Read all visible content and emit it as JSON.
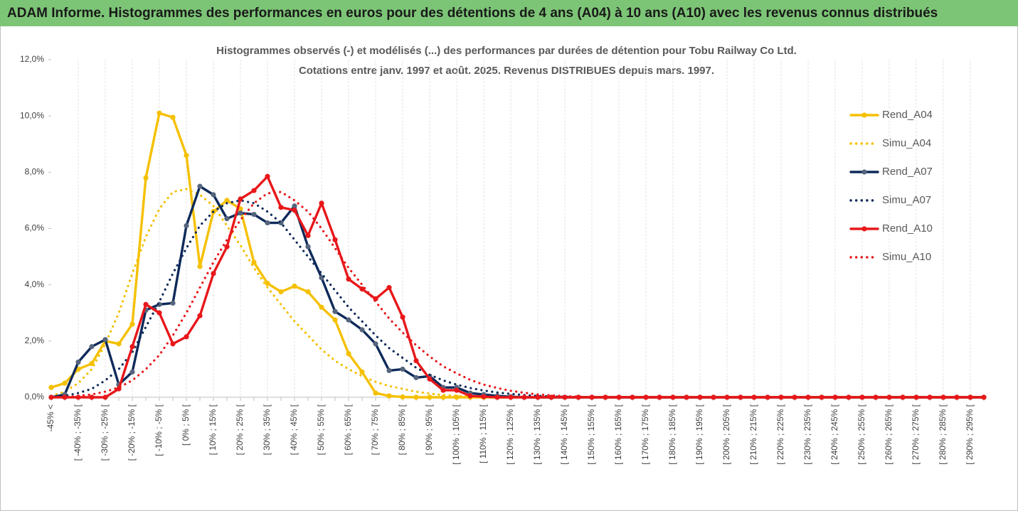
{
  "header": {
    "title": "ADAM Informe. Histogrammes des performances en euros pour des détentions de 4 ans (A04) à 10 ans (A10) avec les revenus connus distribués"
  },
  "chart_data": {
    "type": "line",
    "title": "Histogrammes observés (-) et modélisés (...) des performances par durées de détention pour Tobu Railway Co Ltd.",
    "subtitle": "Cotations entre janv. 1997 et août. 2025. Revenus DISTRIBUES depuis mars. 1997.",
    "categories": [
      "-45% <",
      null,
      "[ -40% ; -35% [",
      null,
      "[ -30% ; -25% [",
      null,
      "[ -20% ; -15% [",
      null,
      "[ -10% ; -5% [",
      null,
      "[ 0% ; 5% [",
      null,
      "[ 10% ; 15% [",
      null,
      "[ 20% ; 25% [",
      null,
      "[ 30% ; 35% [",
      null,
      "[ 40% ; 45% [",
      null,
      "[ 50% ; 55% [",
      null,
      "[ 60% ; 65% [",
      null,
      "[ 70% ; 75% [",
      null,
      "[ 80% ; 85% [",
      null,
      "[ 90% ; 95% [",
      null,
      "[ 100% ; 105% [",
      null,
      "[ 110% ; 115% [",
      null,
      "[ 120% ; 125% [",
      null,
      "[ 130% ; 135% [",
      null,
      "[ 140% ; 145% [",
      null,
      "[ 150% ; 155% [",
      null,
      "[ 160% ; 165% [",
      null,
      "[ 170% ; 175% [",
      null,
      "[ 180% ; 185% [",
      null,
      "[ 190% ; 195% [",
      null,
      "[ 200% ; 205% [",
      null,
      "[ 210% ; 215% [",
      null,
      "[ 220% ; 225% [",
      null,
      "[ 230% ; 235% [",
      null,
      "[ 240% ; 245% [",
      null,
      "[ 250% ; 255% [",
      null,
      "[ 260% ; 265% [",
      null,
      "[ 270% ; 275% [",
      null,
      "[ 280% ; 285% [",
      null,
      "[ 290% ; 295% [",
      null
    ],
    "series": [
      {
        "name": "Rend_A04",
        "color": "#f5c000",
        "style": "solid",
        "marker": true,
        "marker_color": "#f5c000",
        "values": [
          0.35,
          0.5,
          1.0,
          1.2,
          2.0,
          1.9,
          2.6,
          7.8,
          10.1,
          9.95,
          8.6,
          4.65,
          6.6,
          7.0,
          6.7,
          4.8,
          4.05,
          3.75,
          3.95,
          3.75,
          3.2,
          2.75,
          1.55,
          0.9,
          0.15,
          0.05,
          0.01,
          0,
          0,
          0,
          0,
          0,
          0,
          0,
          0,
          0,
          0,
          0,
          0,
          0,
          0,
          0,
          0,
          0,
          0,
          0,
          0,
          0,
          0,
          0,
          0,
          0,
          0,
          0,
          0,
          0,
          0,
          0,
          0,
          0,
          0,
          0,
          0,
          0,
          0,
          0,
          0,
          0,
          0,
          0
        ]
      },
      {
        "name": "Simu_A04",
        "color": "#f5c000",
        "style": "dotted",
        "marker": false,
        "values": [
          0.05,
          0.2,
          0.5,
          1.0,
          1.9,
          3.0,
          4.4,
          5.7,
          6.7,
          7.3,
          7.4,
          7.2,
          6.8,
          6.1,
          5.4,
          4.6,
          3.9,
          3.3,
          2.7,
          2.2,
          1.7,
          1.3,
          1.0,
          0.75,
          0.55,
          0.4,
          0.3,
          0.2,
          0.13,
          0.08,
          0.05,
          0.03,
          0.02,
          0,
          0,
          0,
          0,
          0,
          0,
          0,
          0,
          0,
          0,
          0,
          0,
          0,
          0,
          0,
          0,
          0,
          0,
          0,
          0,
          0,
          0,
          0,
          0,
          0,
          0,
          0,
          0,
          0,
          0,
          0,
          0,
          0,
          0,
          0,
          0,
          0
        ]
      },
      {
        "name": "Rend_A07",
        "color": "#0e2a5a",
        "style": "solid",
        "marker": true,
        "marker_color": "#56657d",
        "values": [
          0,
          0.1,
          1.25,
          1.8,
          2.05,
          0.45,
          0.9,
          3.1,
          3.3,
          3.35,
          6.1,
          7.5,
          7.2,
          6.35,
          6.55,
          6.5,
          6.2,
          6.2,
          6.8,
          5.35,
          4.25,
          3.05,
          2.75,
          2.4,
          1.9,
          0.95,
          1.0,
          0.7,
          0.75,
          0.35,
          0.35,
          0.15,
          0.1,
          0.05,
          0.02,
          0,
          0,
          0,
          0,
          0,
          0,
          0,
          0,
          0,
          0,
          0,
          0,
          0,
          0,
          0,
          0,
          0,
          0,
          0,
          0,
          0,
          0,
          0,
          0,
          0,
          0,
          0,
          0,
          0,
          0,
          0,
          0,
          0,
          0,
          0
        ]
      },
      {
        "name": "Simu_A07",
        "color": "#0e2a5a",
        "style": "dotted",
        "marker": false,
        "values": [
          0,
          0.05,
          0.15,
          0.3,
          0.6,
          1.0,
          1.6,
          2.5,
          3.4,
          4.4,
          5.3,
          6.1,
          6.6,
          6.9,
          7.0,
          6.9,
          6.6,
          6.2,
          5.6,
          5.0,
          4.4,
          3.8,
          3.2,
          2.7,
          2.2,
          1.75,
          1.4,
          1.05,
          0.8,
          0.6,
          0.45,
          0.33,
          0.24,
          0.17,
          0.12,
          0.08,
          0.05,
          0.03,
          0.02,
          0,
          0,
          0,
          0,
          0,
          0,
          0,
          0,
          0,
          0,
          0,
          0,
          0,
          0,
          0,
          0,
          0,
          0,
          0,
          0,
          0,
          0,
          0,
          0,
          0,
          0,
          0,
          0,
          0,
          0,
          0
        ]
      },
      {
        "name": "Rend_A10",
        "color": "#e8171a",
        "style": "solid",
        "marker": true,
        "marker_color": "#e8171a",
        "values": [
          0,
          0,
          0,
          0,
          0,
          0.3,
          1.8,
          3.3,
          3.0,
          1.9,
          2.15,
          2.9,
          4.4,
          5.35,
          7.05,
          7.35,
          7.85,
          6.75,
          6.65,
          5.75,
          6.9,
          5.6,
          4.2,
          3.85,
          3.5,
          3.9,
          2.85,
          1.3,
          0.65,
          0.25,
          0.25,
          0.05,
          0.02,
          0,
          0,
          0,
          0,
          0,
          0,
          0,
          0,
          0,
          0,
          0,
          0,
          0,
          0,
          0,
          0,
          0,
          0,
          0,
          0,
          0,
          0,
          0,
          0,
          0,
          0,
          0,
          0,
          0,
          0,
          0,
          0,
          0,
          0,
          0,
          0,
          0
        ]
      },
      {
        "name": "Simu_A10",
        "color": "#e8171a",
        "style": "dotted",
        "marker": false,
        "values": [
          0,
          0,
          0.05,
          0.1,
          0.2,
          0.35,
          0.6,
          1.0,
          1.5,
          2.2,
          3.0,
          3.9,
          4.8,
          5.6,
          6.3,
          6.9,
          7.25,
          7.3,
          7.0,
          6.6,
          6.0,
          5.3,
          4.6,
          4.0,
          3.4,
          2.8,
          2.3,
          1.85,
          1.45,
          1.1,
          0.85,
          0.62,
          0.45,
          0.33,
          0.23,
          0.16,
          0.1,
          0.07,
          0.04,
          0.02,
          0,
          0,
          0,
          0,
          0,
          0,
          0,
          0,
          0,
          0,
          0,
          0,
          0,
          0,
          0,
          0,
          0,
          0,
          0,
          0,
          0,
          0,
          0,
          0,
          0,
          0,
          0,
          0,
          0,
          0
        ]
      }
    ],
    "ylim": [
      0,
      12
    ],
    "yticks": [
      {
        "value": 0,
        "label": "0,0%"
      },
      {
        "value": 2,
        "label": "2,0%"
      },
      {
        "value": 4,
        "label": "4,0%"
      },
      {
        "value": 6,
        "label": "6,0%"
      },
      {
        "value": 8,
        "label": "8,0%"
      },
      {
        "value": 10,
        "label": "10,0%"
      },
      {
        "value": 12,
        "label": "12,0%"
      }
    ],
    "xgrid": true,
    "legend": "right"
  }
}
